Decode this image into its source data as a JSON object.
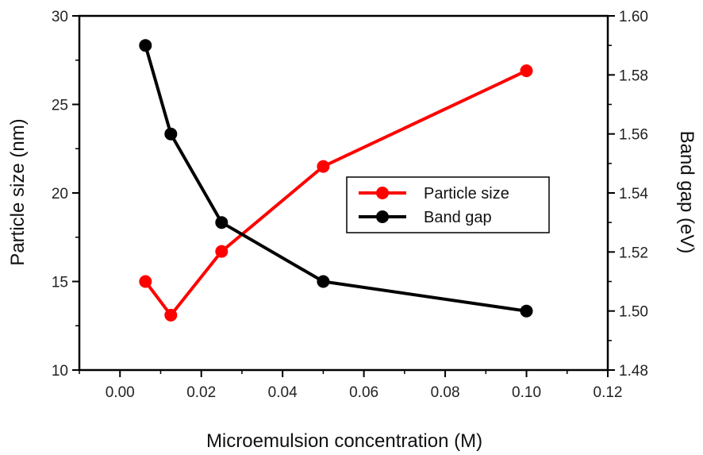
{
  "chart_data": {
    "type": "line",
    "xlabel": "Microemulsion concentration (M)",
    "ylabel_left": "Particle size (nm)",
    "ylabel_right": "Band gap (eV)",
    "xlim": [
      -0.01,
      0.12
    ],
    "xticks": [
      "0.00",
      "0.02",
      "0.04",
      "0.06",
      "0.08",
      "0.10",
      "0.12"
    ],
    "ylim_left": [
      10,
      30
    ],
    "yticks_left": [
      "10",
      "15",
      "20",
      "25",
      "30"
    ],
    "ylim_right": [
      1.48,
      1.6
    ],
    "yticks_right": [
      "1.48",
      "1.50",
      "1.52",
      "1.54",
      "1.56",
      "1.58",
      "1.60"
    ],
    "grid": false,
    "legend_position": "center-right",
    "series": [
      {
        "name": "Particle size",
        "axis": "left",
        "color": "#ff0000",
        "x": [
          0.00625,
          0.0125,
          0.025,
          0.05,
          0.1
        ],
        "y": [
          15.0,
          13.1,
          16.7,
          21.5,
          26.9
        ]
      },
      {
        "name": "Band gap",
        "axis": "right",
        "color": "#000000",
        "x": [
          0.00625,
          0.0125,
          0.025,
          0.05,
          0.1
        ],
        "y": [
          1.59,
          1.56,
          1.53,
          1.51,
          1.5
        ]
      }
    ]
  }
}
